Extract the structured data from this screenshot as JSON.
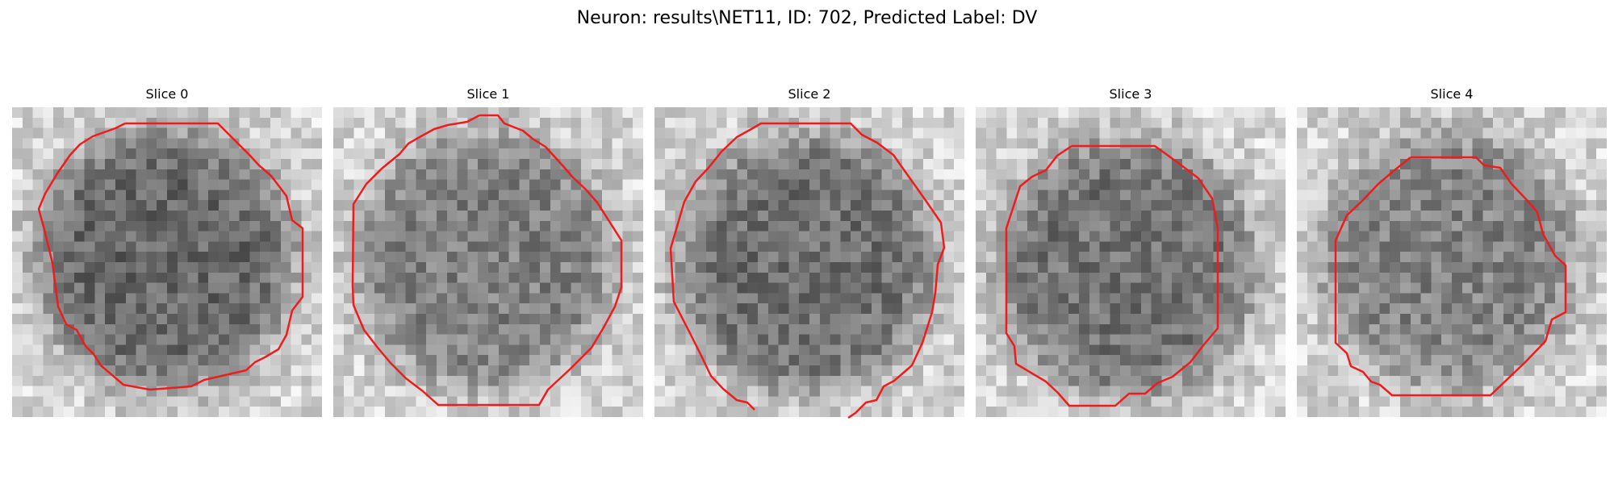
{
  "figure": {
    "title": "Neuron: results\\NET11, ID: 702, Predicted Label: DV"
  },
  "panels": [
    {
      "title": "Slice 0",
      "seed": 11,
      "darkness": 0.8
    },
    {
      "title": "Slice 1",
      "seed": 23,
      "darkness": 0.62
    },
    {
      "title": "Slice 2",
      "seed": 37,
      "darkness": 0.74
    },
    {
      "title": "Slice 3",
      "seed": 51,
      "darkness": 0.72
    },
    {
      "title": "Slice 4",
      "seed": 67,
      "darkness": 0.6
    }
  ],
  "colors": {
    "contour": "#ee1c1c",
    "background": "#ffffff"
  },
  "icons": []
}
